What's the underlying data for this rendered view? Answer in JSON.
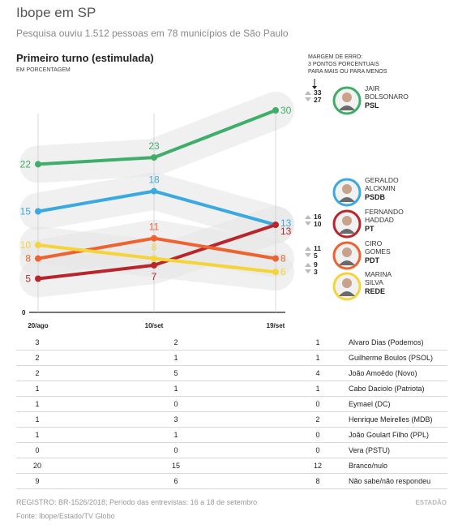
{
  "header": {
    "title": "Ibope em SP",
    "subtitle": "Pesquisa ouviu 1.512 pessoas em 78 municípios de São Paulo"
  },
  "chart_data": {
    "type": "line",
    "title": "Primeiro turno (estimulada)",
    "subtitle": "EM PORCENTAGEM",
    "margin_note": [
      "MARGEM DE ERRO:",
      "3 PONTOS PORCENTUAIS",
      "PARA MAIS OU PARA MENOS"
    ],
    "x": [
      "20/ago",
      "10/set",
      "19/set"
    ],
    "y_zero_label": "0",
    "ylim": [
      0,
      32
    ],
    "series": [
      {
        "name": "Jair Bolsonaro",
        "name_lines": [
          "JAIR",
          "BOLSONARO"
        ],
        "party": "PSL",
        "color": "#3fae6a",
        "values": [
          22,
          23,
          30
        ],
        "margin": [
          "33",
          "27"
        ]
      },
      {
        "name": "Geraldo Alckmin",
        "name_lines": [
          "GERALDO",
          "ALCKMIN"
        ],
        "party": "PSDB",
        "color": "#3aa9e0",
        "values": [
          15,
          18,
          13
        ],
        "margin": [
          "16",
          "10"
        ]
      },
      {
        "name": "Fernando Haddad",
        "name_lines": [
          "FERNANDO",
          "HADDAD"
        ],
        "party": "PT",
        "color": "#b8262b",
        "values": [
          5,
          7,
          13
        ],
        "margin": [
          "16",
          "10"
        ]
      },
      {
        "name": "Ciro Gomes",
        "name_lines": [
          "CIRO",
          "GOMES"
        ],
        "party": "PDT",
        "color": "#ee6230",
        "values": [
          8,
          11,
          8
        ],
        "margin": [
          "11",
          "5"
        ]
      },
      {
        "name": "Marina Silva",
        "name_lines": [
          "MARINA",
          "SILVA"
        ],
        "party": "REDE",
        "color": "#f5d43a",
        "values": [
          10,
          8,
          6
        ],
        "margin": [
          "9",
          "3"
        ]
      }
    ]
  },
  "table": {
    "rows": [
      {
        "v": [
          "3",
          "2",
          "1"
        ],
        "name": "Alvaro Dias (Podemos)"
      },
      {
        "v": [
          "2",
          "1",
          "1"
        ],
        "name": "Guilherme Boulos (PSOL)"
      },
      {
        "v": [
          "2",
          "5",
          "4"
        ],
        "name": "João Amoêdo (Novo)"
      },
      {
        "v": [
          "1",
          "1",
          "1"
        ],
        "name": "Cabo Daciolo (Patriota)"
      },
      {
        "v": [
          "1",
          "0",
          "0"
        ],
        "name": "Eymael (DC)"
      },
      {
        "v": [
          "1",
          "3",
          "2"
        ],
        "name": "Henrique Meirelles (MDB)"
      },
      {
        "v": [
          "1",
          "1",
          "0"
        ],
        "name": "João Goulart Filho (PPL)"
      },
      {
        "v": [
          "0",
          "0",
          "0"
        ],
        "name": "Vera (PSTU)"
      },
      {
        "v": [
          "20",
          "15",
          "12"
        ],
        "name": "Branco/nulo"
      },
      {
        "v": [
          "9",
          "6",
          "8"
        ],
        "name": "Não sabe/não respondeu"
      }
    ]
  },
  "footer": {
    "registro": "REGISTRO: BR-1526/2018; Período das entrevistas: 16 a 18 de setembro",
    "fonte": "Fonte: Ibope/Estado/TV Globo",
    "logo": "ESTADÃO"
  }
}
